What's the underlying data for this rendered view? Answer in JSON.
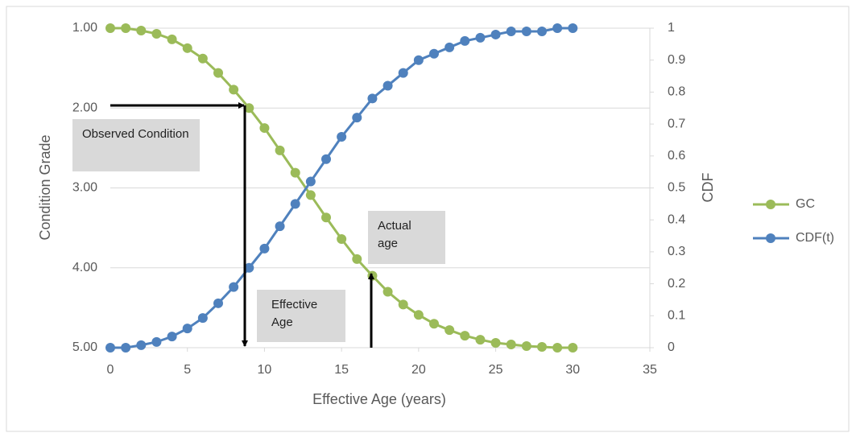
{
  "chart_data": {
    "type": "line",
    "x_label": "Effective Age (years)",
    "y_label": "Condition Grade",
    "y2_label": "CDF",
    "x": [
      0,
      1,
      2,
      3,
      4,
      5,
      6,
      7,
      8,
      9,
      10,
      11,
      12,
      13,
      14,
      15,
      16,
      17,
      18,
      19,
      20,
      21,
      22,
      23,
      24,
      25,
      26,
      27,
      28,
      29,
      30
    ],
    "series": [
      {
        "name": "GC",
        "color": "#9bbb59",
        "axis": "y",
        "values": [
          1.0,
          1.0,
          1.03,
          1.07,
          1.14,
          1.25,
          1.38,
          1.56,
          1.77,
          2.0,
          2.25,
          2.53,
          2.81,
          3.09,
          3.37,
          3.64,
          3.89,
          4.1,
          4.3,
          4.46,
          4.59,
          4.7,
          4.78,
          4.85,
          4.9,
          4.94,
          4.96,
          4.98,
          4.99,
          5.0,
          5.0
        ]
      },
      {
        "name": "CDF(t)",
        "color": "#4f81bd",
        "axis": "y2",
        "values": [
          0,
          0,
          0.008,
          0.018,
          0.035,
          0.06,
          0.093,
          0.139,
          0.19,
          0.25,
          0.31,
          0.38,
          0.45,
          0.52,
          0.59,
          0.66,
          0.72,
          0.78,
          0.82,
          0.86,
          0.9,
          0.92,
          0.94,
          0.96,
          0.97,
          0.98,
          0.99,
          0.99,
          0.99,
          1,
          1
        ]
      }
    ],
    "xlim": [
      0,
      35
    ],
    "xticks": [
      0,
      5,
      10,
      15,
      20,
      25,
      30,
      35
    ],
    "ylim": [
      5,
      1
    ],
    "yticks": [
      {
        "value": 1,
        "label": "1.00"
      },
      {
        "value": 2,
        "label": "2.00"
      },
      {
        "value": 3,
        "label": "3.00"
      },
      {
        "value": 4,
        "label": "4.00"
      },
      {
        "value": 5,
        "label": "5.00"
      }
    ],
    "y2lim": [
      0,
      1
    ],
    "y2ticks": [
      0,
      0.1,
      0.2,
      0.3,
      0.4,
      0.5,
      0.6,
      0.7,
      0.8,
      0.9,
      1
    ],
    "grid": true,
    "legend": "right",
    "annotations": [
      "Observed Condition",
      "Effective Age",
      "Actual age"
    ]
  }
}
